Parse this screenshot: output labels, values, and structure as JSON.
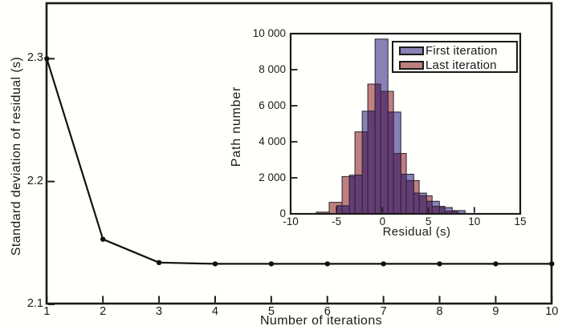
{
  "figure": {
    "background": "#FFFFFB",
    "frame_color": "#1A1A1A",
    "text_color": "#1A1A1A"
  },
  "chart_data": [
    {
      "id": "main",
      "type": "line",
      "xlabel": "Number of iterations",
      "ylabel": "Standard deviation of residual (s)",
      "xlim": [
        1,
        10
      ],
      "ylim": [
        2.1,
        2.345
      ],
      "grid": false,
      "line_color": "#111111",
      "marker": "filled-circle",
      "xticks": [
        1,
        2,
        3,
        4,
        5,
        6,
        7,
        8,
        9,
        10
      ],
      "xtick_labels": [
        "1",
        "2",
        "3",
        "4",
        "5",
        "6",
        "7",
        "8",
        "9",
        "10"
      ],
      "yticks": [
        2.1,
        2.2,
        2.3
      ],
      "ytick_labels": [
        "2.1",
        "2.2",
        "2.3"
      ],
      "x": [
        1,
        2,
        3,
        4,
        5,
        6,
        7,
        8,
        9,
        10
      ],
      "y": [
        2.3,
        2.153,
        2.134,
        2.133,
        2.133,
        2.133,
        2.133,
        2.133,
        2.133,
        2.133
      ]
    },
    {
      "id": "inset",
      "type": "bar",
      "subtype": "overlaid-histogram",
      "xlabel": "Residual (s)",
      "ylabel": "Path number",
      "xlim": [
        -10,
        15
      ],
      "ylim": [
        0,
        10000
      ],
      "grid": false,
      "xticks": [
        -10,
        -5,
        0,
        5,
        10,
        15
      ],
      "xtick_labels": [
        "-10",
        "-5",
        "0",
        "5",
        "10",
        "15"
      ],
      "yticks": [
        0,
        2000,
        4000,
        6000,
        8000,
        10000
      ],
      "ytick_labels": [
        "0",
        "2 000",
        "4 000",
        "6 000",
        "8 000",
        "10 000"
      ],
      "overlap_color": "#653D75",
      "bar_edge_color": "#2B2433",
      "legend": {
        "position": "upper-right",
        "entries": [
          {
            "label": "First iteration",
            "color": "#8781B5"
          },
          {
            "label": "Last iteration",
            "color": "#BF7F7F"
          }
        ]
      },
      "series": [
        {
          "name": "First iteration",
          "color": "#8781B5",
          "bin_edges": [
            -5.0,
            -3.6,
            -2.2,
            -0.8,
            0.6,
            2.0,
            3.4,
            4.8,
            6.2,
            7.6,
            9.0
          ],
          "counts": [
            450,
            2150,
            5700,
            9700,
            5650,
            2200,
            1150,
            700,
            350,
            180
          ]
        },
        {
          "name": "Last iteration",
          "color": "#BF7F7F",
          "bin_edges": [
            -7.2,
            -5.8,
            -4.4,
            -3.0,
            -1.6,
            -0.2,
            1.2,
            2.6,
            4.0,
            5.4,
            6.8,
            8.2
          ],
          "counts": [
            100,
            640,
            2070,
            4550,
            7200,
            6800,
            3350,
            1850,
            1000,
            420,
            150
          ]
        }
      ]
    }
  ]
}
